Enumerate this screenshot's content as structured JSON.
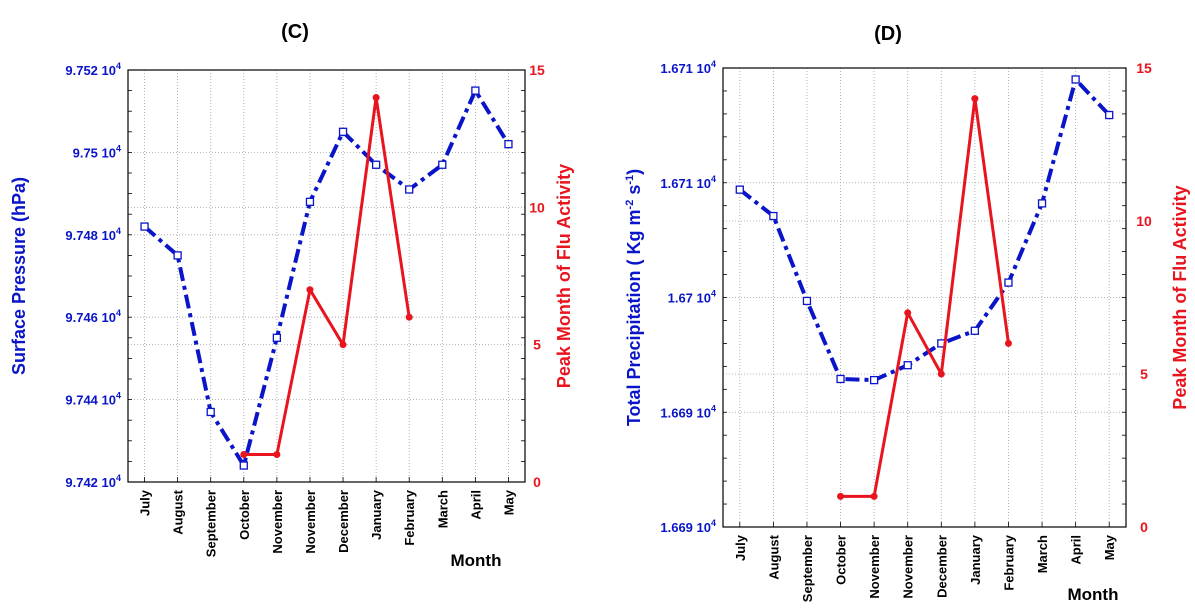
{
  "chart_data": [
    {
      "type": "line",
      "title": "(C)",
      "xlabel": "Month",
      "ylabel": "Surface Pressure (hPa)",
      "y2label": "Peak Month of Flu Activity",
      "categories": [
        "July",
        "August",
        "September",
        "October",
        "November",
        "November",
        "December",
        "January",
        "February",
        "March",
        "April",
        "May"
      ],
      "ylim": [
        97420,
        97520
      ],
      "y_ticks": [
        {
          "value": 97420,
          "label": "9.742 10",
          "exp": "4"
        },
        {
          "value": 97440,
          "label": "9.744 10",
          "exp": "4"
        },
        {
          "value": 97460,
          "label": "9.746 10",
          "exp": "4"
        },
        {
          "value": 97480,
          "label": "9.748 10",
          "exp": "4"
        },
        {
          "value": 97500,
          "label": "9.75 10",
          "exp": "4"
        },
        {
          "value": 97520,
          "label": "9.752 10",
          "exp": "4"
        }
      ],
      "y2lim": [
        0,
        15
      ],
      "y2_ticks": [
        0,
        5,
        10,
        15
      ],
      "grid": true,
      "colors": {
        "primary": "#0a14c8",
        "secondary": "#e8141e",
        "grid": "#a0a0a0"
      },
      "series": [
        {
          "axis": "left",
          "style": "dash-dot",
          "marker": "open-square",
          "color": "#0a14c8",
          "x": [
            0,
            1,
            2,
            3,
            4,
            5,
            6,
            7,
            8,
            9,
            10,
            11
          ],
          "values": [
            97482,
            97475,
            97437,
            97424,
            97455,
            97488,
            97505,
            97497,
            97491,
            97497,
            97515,
            97502
          ]
        },
        {
          "axis": "right",
          "style": "solid",
          "marker": "filled-circle",
          "color": "#e8141e",
          "x": [
            3,
            4,
            5,
            6,
            7,
            8
          ],
          "values": [
            1,
            1,
            7,
            5,
            14,
            6
          ]
        }
      ]
    },
    {
      "type": "line",
      "title": "(D)",
      "xlabel": "Month",
      "ylabel": "Total Precipitation ( Kg m",
      "ylabel_sup1": "-2",
      "ylabel_mid": " s",
      "ylabel_sup2": "-1",
      "ylabel_end": ")",
      "y2label": "Peak Month of Flu Activity",
      "categories": [
        "July",
        "August",
        "September",
        "October",
        "November",
        "November",
        "December",
        "January",
        "February",
        "March",
        "April",
        "May"
      ],
      "ylim": [
        0,
        4
      ],
      "y_ticks": [
        {
          "value": 0,
          "label": "1.669 10",
          "exp": "4"
        },
        {
          "value": 1,
          "label": "1.669 10",
          "exp": "4"
        },
        {
          "value": 2,
          "label": "1.67 10",
          "exp": "4"
        },
        {
          "value": 3,
          "label": "1.671 10",
          "exp": "4"
        },
        {
          "value": 4,
          "label": "1.671 10",
          "exp": "4"
        },
        {
          "value": 5,
          "label": "1.671 10",
          "exp": "4"
        }
      ],
      "y2lim": [
        0,
        15
      ],
      "y2_ticks": [
        0,
        5,
        10,
        15
      ],
      "grid": true,
      "colors": {
        "primary": "#0a14c8",
        "secondary": "#e8141e",
        "grid": "#a0a0a0"
      },
      "series": [
        {
          "axis": "left",
          "style": "dash-dot",
          "marker": "open-square",
          "color": "#0a14c8",
          "x": [
            0,
            1,
            2,
            3,
            4,
            5,
            6,
            7,
            8,
            9,
            10,
            11
          ],
          "values": [
            2.94,
            2.71,
            1.97,
            1.29,
            1.28,
            1.41,
            1.6,
            1.71,
            2.13,
            2.82,
            3.9,
            3.59
          ]
        },
        {
          "axis": "right",
          "style": "solid",
          "marker": "filled-circle",
          "color": "#e8141e",
          "x": [
            3,
            4,
            5,
            6,
            7,
            8
          ],
          "values": [
            1,
            1,
            7,
            5,
            14,
            6
          ]
        }
      ]
    }
  ]
}
